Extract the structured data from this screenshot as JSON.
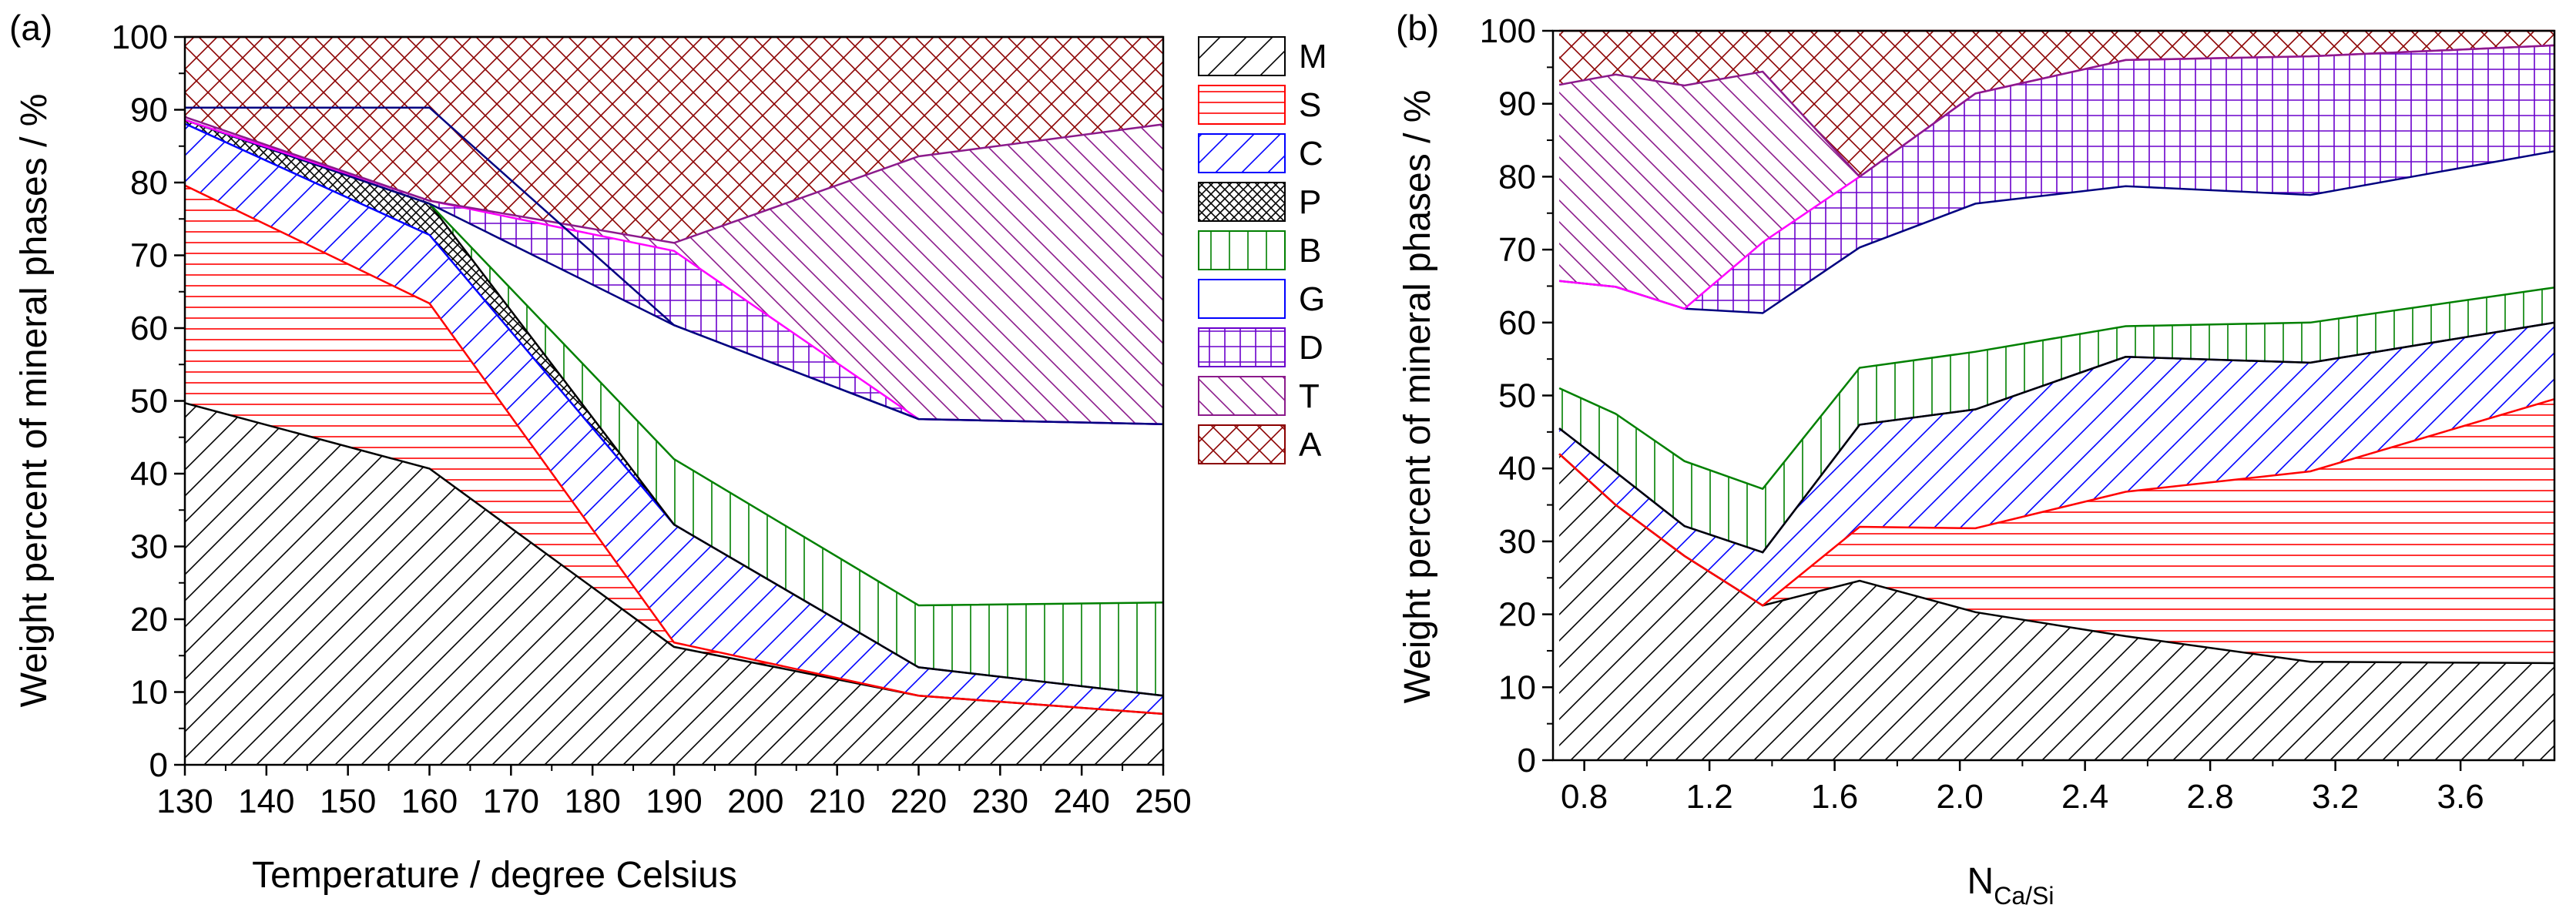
{
  "chart_data": [
    {
      "type": "area",
      "panel_label": "(a)",
      "title": "",
      "xlabel": "Temperature / degree Celsius",
      "ylabel": "Weight percent of mineral phases / %",
      "xlim": [
        130,
        250
      ],
      "ylim": [
        0,
        100
      ],
      "xticks": [
        130,
        140,
        150,
        160,
        170,
        180,
        190,
        200,
        210,
        220,
        230,
        240,
        250
      ],
      "yticks": [
        0,
        10,
        20,
        30,
        40,
        50,
        60,
        70,
        80,
        90,
        100
      ],
      "x": [
        130,
        160,
        190,
        220,
        250
      ],
      "boundaries": [
        {
          "phase": "M",
          "upper": [
            49.7,
            40.7,
            16.2,
            9.5,
            7.0
          ]
        },
        {
          "phase": "S",
          "upper": [
            79.6,
            63.4,
            16.8,
            9.5,
            7.0
          ]
        },
        {
          "phase": "C",
          "upper": [
            88.1,
            72.8,
            33.0,
            13.4,
            9.5
          ]
        },
        {
          "phase": "P",
          "upper": [
            88.6,
            77.1,
            33.0,
            13.4,
            9.5
          ]
        },
        {
          "phase": "B",
          "upper": [
            88.6,
            77.1,
            42.0,
            21.9,
            22.3
          ]
        },
        {
          "phase": "G",
          "upper": [
            88.6,
            77.1,
            60.4,
            47.5,
            46.8
          ]
        },
        {
          "phase": "D",
          "upper": [
            88.6,
            77.5,
            70.6,
            47.5,
            46.8
          ]
        },
        {
          "phase": "T",
          "upper": [
            89.0,
            77.5,
            71.7,
            83.6,
            88.0
          ]
        },
        {
          "phase": "A",
          "upper": [
            100,
            100,
            100,
            100,
            100
          ]
        }
      ],
      "extra_lines": [
        {
          "color": "#000080",
          "y": [
            90.3,
            90.3,
            60.4,
            47.5,
            46.8
          ]
        }
      ]
    },
    {
      "type": "area",
      "panel_label": "(b)",
      "title": "",
      "xlabel_main": "N",
      "xlabel_sub": "Ca/Si",
      "ylabel": "Weight percent of mineral phases / %",
      "xlim": [
        0.7,
        3.9
      ],
      "ylim": [
        0,
        100
      ],
      "xticks": [
        0.8,
        1.2,
        1.6,
        2.0,
        2.4,
        2.8,
        3.2,
        3.6
      ],
      "xtick_labels": [
        "0.8",
        "1.2",
        "1.6",
        "2.0",
        "2.4",
        "2.8",
        "3.2",
        "3.6"
      ],
      "yticks": [
        0,
        10,
        20,
        30,
        40,
        50,
        60,
        70,
        80,
        90,
        100
      ],
      "x": [
        0.72,
        0.9,
        1.12,
        1.37,
        1.68,
        2.05,
        2.53,
        3.12,
        3.9
      ],
      "boundaries": [
        {
          "phase": "M",
          "upper": [
            42.0,
            35.0,
            28.0,
            21.2,
            24.6,
            20.3,
            17.0,
            13.5,
            13.3
          ]
        },
        {
          "phase": "S",
          "upper": [
            42.0,
            35.0,
            28.0,
            21.2,
            32.0,
            31.8,
            36.8,
            39.6,
            49.5
          ]
        },
        {
          "phase": "C",
          "upper": [
            45.5,
            39.5,
            32.1,
            28.5,
            46.0,
            48.1,
            55.3,
            54.5,
            60.0
          ]
        },
        {
          "phase": "P",
          "upper": [
            45.5,
            39.5,
            32.1,
            28.5,
            46.0,
            48.1,
            55.3,
            54.5,
            60.0
          ]
        },
        {
          "phase": "B",
          "upper": [
            51.0,
            47.5,
            41.0,
            37.2,
            53.8,
            56.0,
            59.5,
            60.0,
            64.8
          ]
        },
        {
          "phase": "G",
          "upper": [
            65.7,
            64.9,
            61.9,
            61.3,
            70.3,
            76.3,
            78.7,
            77.5,
            83.5
          ]
        },
        {
          "phase": "D",
          "upper": [
            65.7,
            64.9,
            61.9,
            71.0,
            80.0,
            91.4,
            96.0,
            96.5,
            98.0
          ]
        },
        {
          "phase": "T",
          "upper": [
            92.6,
            94.0,
            92.5,
            94.4,
            80.0,
            91.4,
            96.0,
            96.5,
            98.0
          ]
        },
        {
          "phase": "A",
          "upper": [
            100,
            100,
            100,
            100,
            100,
            100,
            100,
            100,
            100
          ]
        }
      ],
      "extra_lines": []
    }
  ],
  "legend": [
    {
      "code": "M",
      "label": "M",
      "color": "#000000",
      "pattern": "diag-forward"
    },
    {
      "code": "S",
      "label": "S",
      "color": "#ff0000",
      "pattern": "horizontal"
    },
    {
      "code": "C",
      "label": "C",
      "color": "#0000ff",
      "pattern": "diag-forward"
    },
    {
      "code": "P",
      "label": "P",
      "color": "#000000",
      "pattern": "cross-dense"
    },
    {
      "code": "B",
      "label": "B",
      "color": "#008000",
      "pattern": "vertical"
    },
    {
      "code": "G",
      "label": "G",
      "color": "#0000ff",
      "pattern": "none"
    },
    {
      "code": "D",
      "label": "D",
      "color": "#6a00cc",
      "pattern": "grid"
    },
    {
      "code": "T",
      "label": "T",
      "color": "#8b1a8b",
      "pattern": "diag-backward"
    },
    {
      "code": "A",
      "label": "A",
      "color": "#8b0000",
      "pattern": "cross-diag"
    }
  ],
  "line_colors": {
    "M": "#000000",
    "S": "#ff0000",
    "C": "#0000ff",
    "P": "#000000",
    "B": "#008000",
    "G": "#000080",
    "D": "#ff00ff",
    "T": "#8b1a8b",
    "A": "#8b0000"
  }
}
